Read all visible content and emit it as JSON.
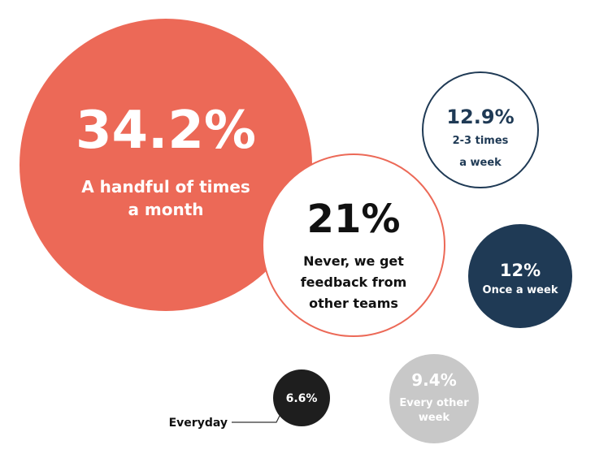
{
  "chart_data": {
    "type": "bubble",
    "unit": "%",
    "bubbles": [
      {
        "value": 34.2,
        "value_label": "34.2%",
        "label": [
          "A handful of times",
          "a month"
        ],
        "style": "filled",
        "fill": "#EC6957",
        "text_color": "#FFFFFF"
      },
      {
        "value": 21,
        "value_label": "21%",
        "label": [
          "Never, we get",
          "feedback from",
          "other teams"
        ],
        "style": "outlined",
        "fill": "#FFFFFF",
        "stroke": "#EC6957",
        "text_color": "#111111"
      },
      {
        "value": 12.9,
        "value_label": "12.9%",
        "label": [
          "2-3 times",
          "a week"
        ],
        "style": "outlined",
        "fill": "#FFFFFF",
        "stroke": "#1F3A55",
        "text_color": "#1F3A55"
      },
      {
        "value": 12,
        "value_label": "12%",
        "label": [
          "Once a week"
        ],
        "style": "filled",
        "fill": "#1F3A55",
        "text_color": "#FFFFFF"
      },
      {
        "value": 9.4,
        "value_label": "9.4%",
        "label": [
          "Every other",
          "week"
        ],
        "style": "filled",
        "fill": "#C8C8C8",
        "text_color": "#FFFFFF"
      },
      {
        "value": 6.6,
        "value_label": "6.6%",
        "label": [
          "Everyday"
        ],
        "style": "filled",
        "fill": "#1E1E1E",
        "text_color": "#FFFFFF",
        "label_placement": "outside-left"
      }
    ]
  }
}
